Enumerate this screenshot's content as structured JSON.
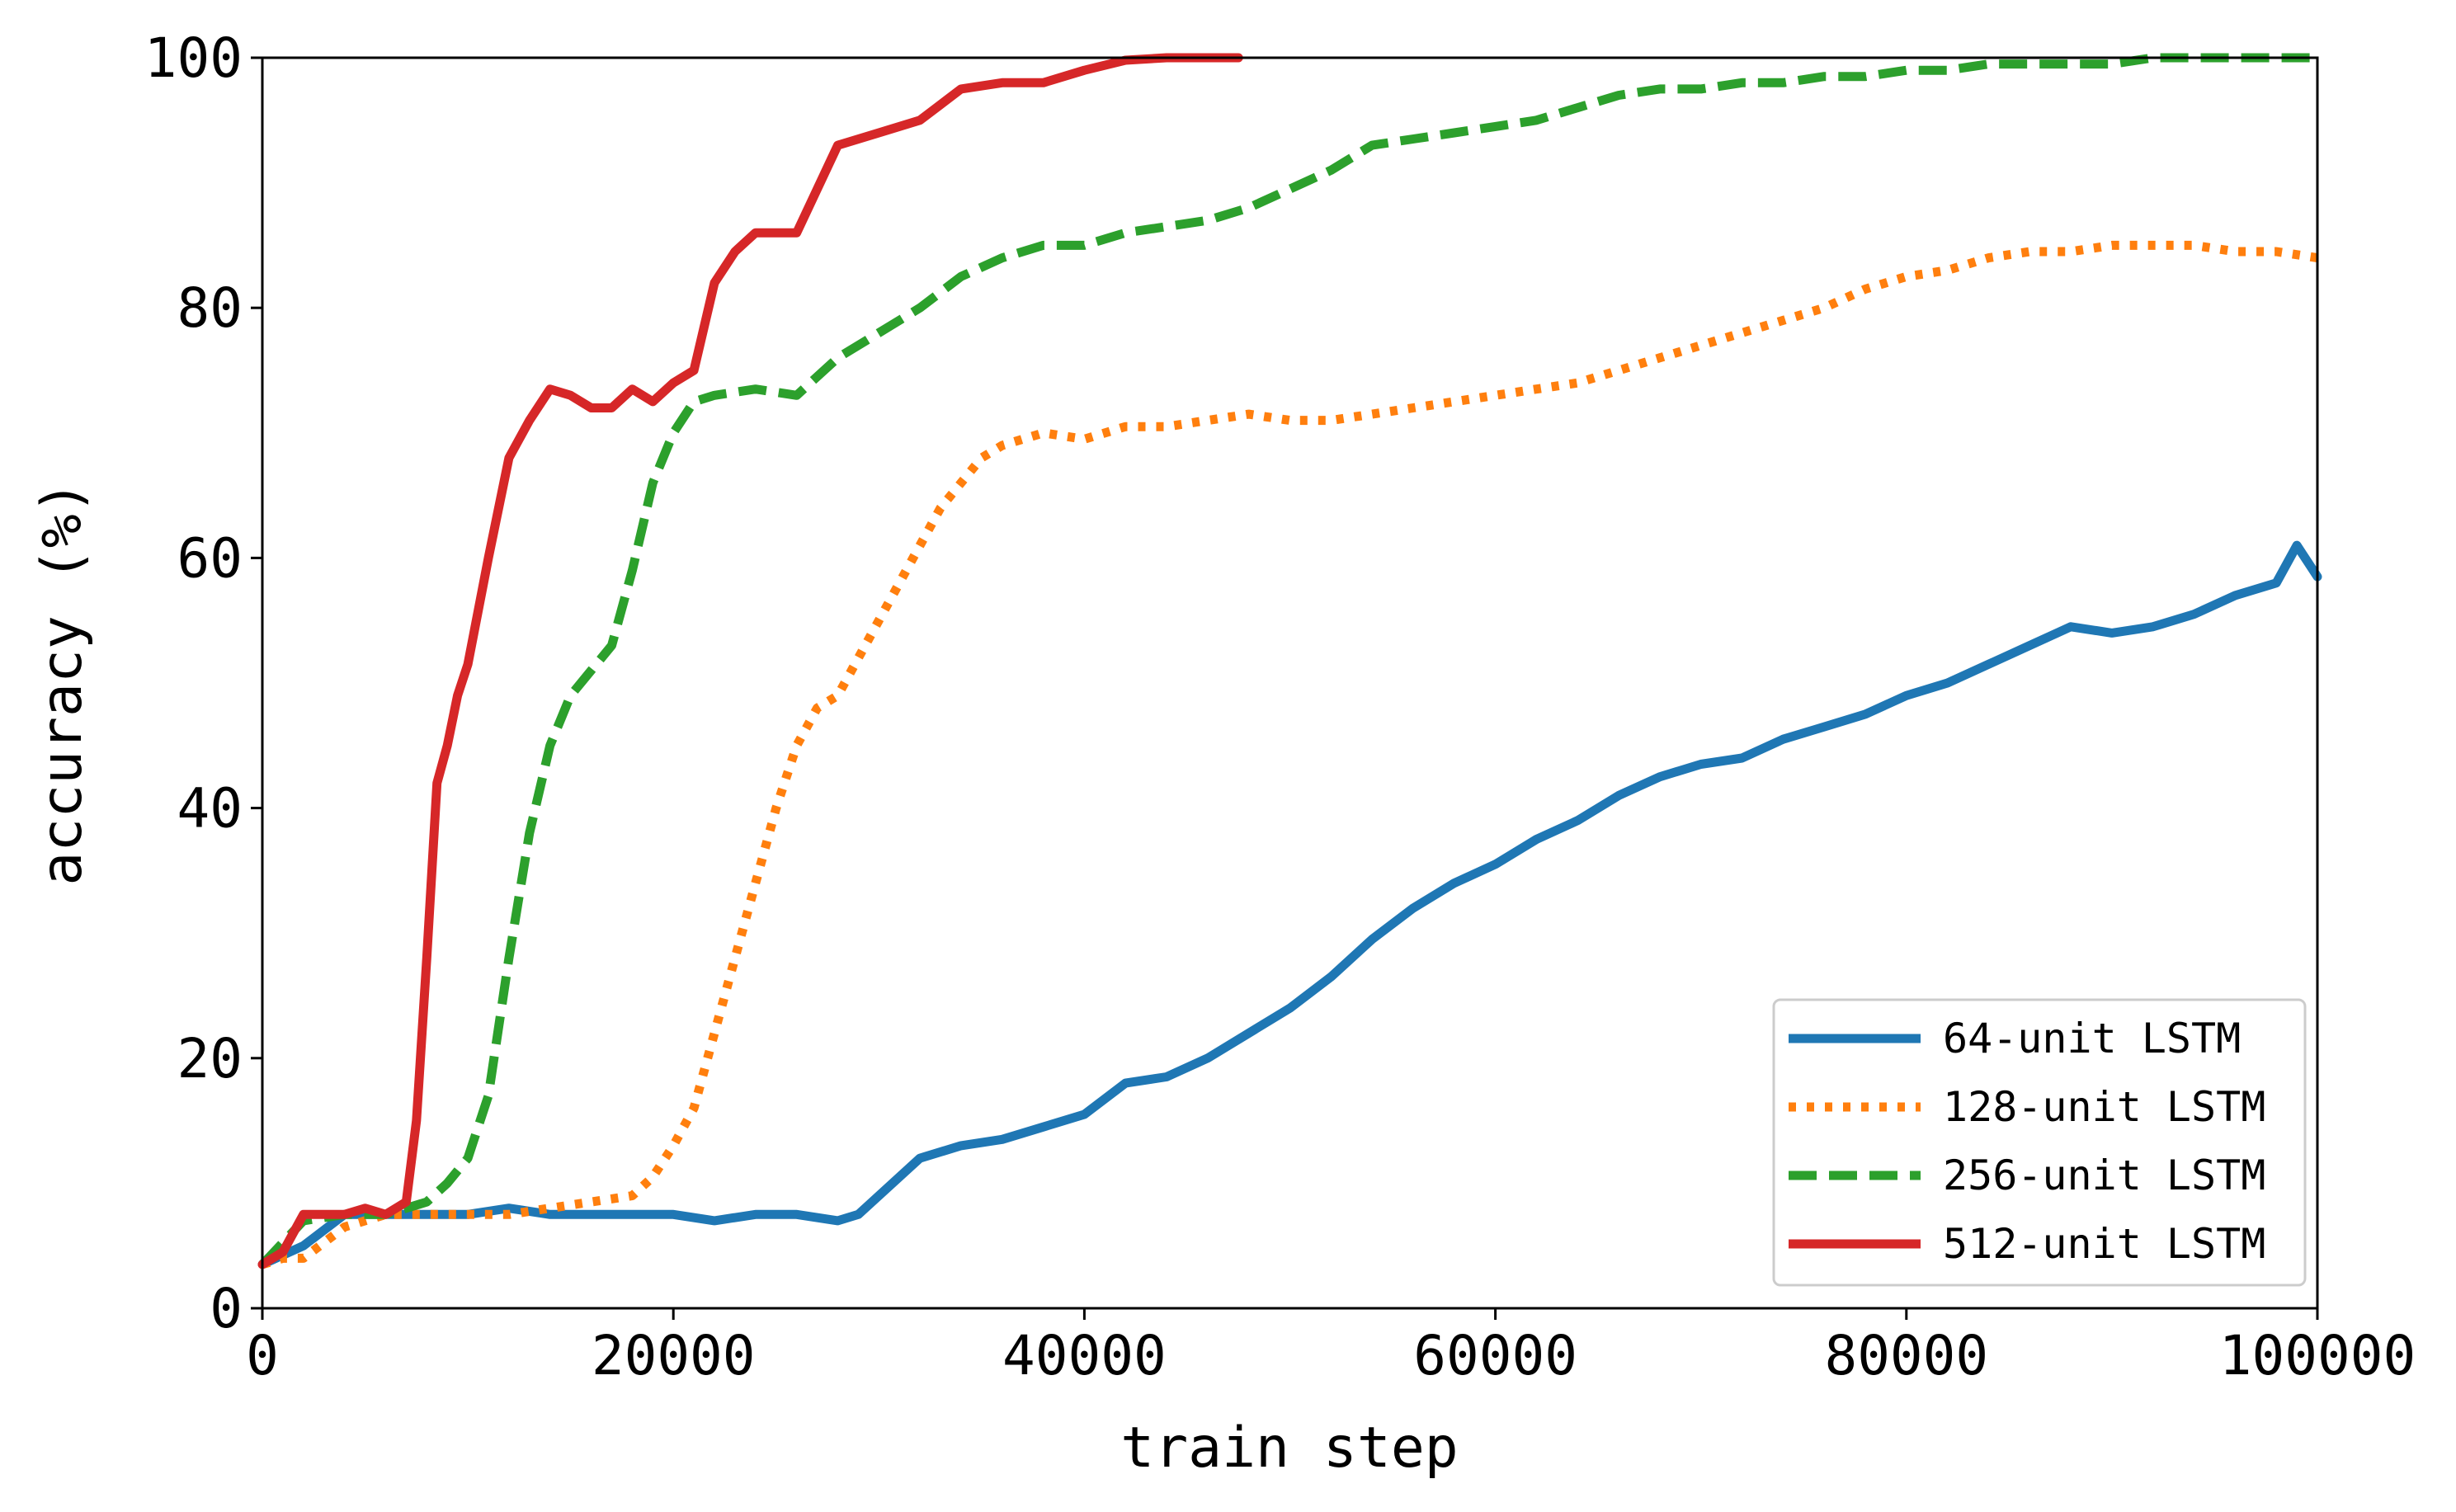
{
  "chart_data": {
    "type": "line",
    "title": "",
    "xlabel": "train step",
    "ylabel": "accuracy (%)",
    "xlim": [
      0,
      100000
    ],
    "ylim": [
      0,
      100
    ],
    "xticks": [
      0,
      20000,
      40000,
      60000,
      80000,
      100000
    ],
    "yticks": [
      0,
      20,
      40,
      60,
      80,
      100
    ],
    "grid": false,
    "legend_position": "lower-right",
    "series": [
      {
        "name": "64-unit LSTM",
        "color": "#1f77b4",
        "style": "solid",
        "x": [
          0,
          2000,
          4000,
          6000,
          8000,
          10000,
          12000,
          14000,
          16000,
          18000,
          20000,
          22000,
          24000,
          26000,
          28000,
          29000,
          30000,
          32000,
          34000,
          36000,
          38000,
          40000,
          42000,
          44000,
          46000,
          48000,
          50000,
          52000,
          54000,
          56000,
          58000,
          60000,
          62000,
          64000,
          66000,
          68000,
          70000,
          72000,
          74000,
          76000,
          78000,
          80000,
          82000,
          84000,
          86000,
          88000,
          90000,
          92000,
          94000,
          96000,
          98000,
          99000,
          100000
        ],
        "y": [
          3.5,
          5,
          7.5,
          7.5,
          7.5,
          7.5,
          8,
          7.5,
          7.5,
          7.5,
          7.5,
          7,
          7.5,
          7.5,
          7,
          7.5,
          9,
          12,
          13,
          13.5,
          14.5,
          15.5,
          18,
          18.5,
          20,
          22,
          24,
          26.5,
          29.5,
          32,
          34,
          35.5,
          37.5,
          39,
          41,
          42.5,
          43.5,
          44,
          45.5,
          46.5,
          47.5,
          49,
          50,
          51.5,
          53,
          54.5,
          54,
          54.5,
          55.5,
          57,
          58,
          61,
          58.5
        ]
      },
      {
        "name": "128-unit LSTM",
        "color": "#ff7f0e",
        "style": "dotted",
        "x": [
          0,
          1000,
          2000,
          4000,
          6000,
          8000,
          10000,
          12000,
          14000,
          16000,
          18000,
          19000,
          20000,
          21000,
          22000,
          23000,
          24000,
          25000,
          26000,
          27000,
          28000,
          29000,
          30000,
          31000,
          32000,
          33000,
          34000,
          35000,
          36000,
          38000,
          40000,
          42000,
          44000,
          46000,
          48000,
          50000,
          52000,
          54000,
          56000,
          58000,
          60000,
          62000,
          64000,
          66000,
          68000,
          70000,
          72000,
          74000,
          76000,
          78000,
          80000,
          82000,
          84000,
          86000,
          88000,
          90000,
          92000,
          94000,
          96000,
          98000,
          100000
        ],
        "y": [
          3.5,
          4,
          4,
          6.5,
          7.5,
          7.5,
          7.5,
          7.5,
          8,
          8.5,
          9,
          10.5,
          13,
          16,
          22,
          28,
          34,
          40,
          45,
          48,
          49,
          52,
          55,
          58,
          61,
          64,
          66,
          68,
          69,
          70,
          69.5,
          70.5,
          70.5,
          71,
          71.5,
          71,
          71,
          71.5,
          72,
          72.5,
          73,
          73.5,
          74,
          75,
          76,
          77,
          78,
          79,
          80,
          81.5,
          82.5,
          83,
          84,
          84.5,
          84.5,
          85,
          85,
          85,
          84.5,
          84.5,
          84
        ]
      },
      {
        "name": "256-unit LSTM",
        "color": "#2ca02c",
        "style": "dashed",
        "x": [
          0,
          2000,
          4000,
          6000,
          7000,
          8000,
          9000,
          10000,
          11000,
          12000,
          13000,
          14000,
          15000,
          16000,
          17000,
          18000,
          19000,
          20000,
          21000,
          22000,
          24000,
          26000,
          28000,
          30000,
          32000,
          34000,
          36000,
          38000,
          40000,
          42000,
          44000,
          46000,
          48000,
          50000,
          52000,
          54000,
          56000,
          58000,
          60000,
          62000,
          64000,
          66000,
          68000,
          70000,
          72000,
          74000,
          76000,
          78000,
          80000,
          82000,
          84000,
          86000,
          88000,
          90000,
          92000,
          94000,
          96000,
          98000,
          100000
        ],
        "y": [
          3.5,
          7,
          7.5,
          7.5,
          8,
          8.5,
          10,
          12,
          17,
          28,
          38,
          45,
          49,
          51,
          53,
          59,
          66,
          70,
          72.5,
          73,
          73.5,
          73,
          76,
          78,
          80,
          82.5,
          84,
          85,
          85,
          86,
          86.5,
          87,
          88,
          89.5,
          91,
          93,
          93.5,
          94,
          94.5,
          95,
          96,
          97,
          97.5,
          97.5,
          98,
          98,
          98.5,
          98.5,
          99,
          99,
          99.5,
          99.5,
          99.5,
          99.5,
          100,
          100,
          100,
          100,
          100
        ]
      },
      {
        "name": "512-unit LSTM",
        "color": "#d62728",
        "style": "solid",
        "x": [
          0,
          1000,
          2000,
          3000,
          4000,
          5000,
          6000,
          7000,
          7500,
          8000,
          8500,
          9000,
          9500,
          10000,
          11000,
          12000,
          13000,
          14000,
          15000,
          16000,
          17000,
          18000,
          19000,
          20000,
          21000,
          22000,
          23000,
          24000,
          26000,
          28000,
          30000,
          32000,
          34000,
          36000,
          38000,
          40000,
          42000,
          44000,
          46000,
          47500
        ],
        "y": [
          3.5,
          4.5,
          7.5,
          7.5,
          7.5,
          8,
          7.5,
          8.5,
          15,
          28,
          42,
          45,
          49,
          51.5,
          60,
          68,
          71,
          73.5,
          73,
          72,
          72,
          73.5,
          72.5,
          74,
          75,
          82,
          84.5,
          86,
          86,
          93,
          94,
          95,
          97.5,
          98,
          98,
          99,
          99.8,
          100,
          100,
          100
        ]
      }
    ]
  }
}
